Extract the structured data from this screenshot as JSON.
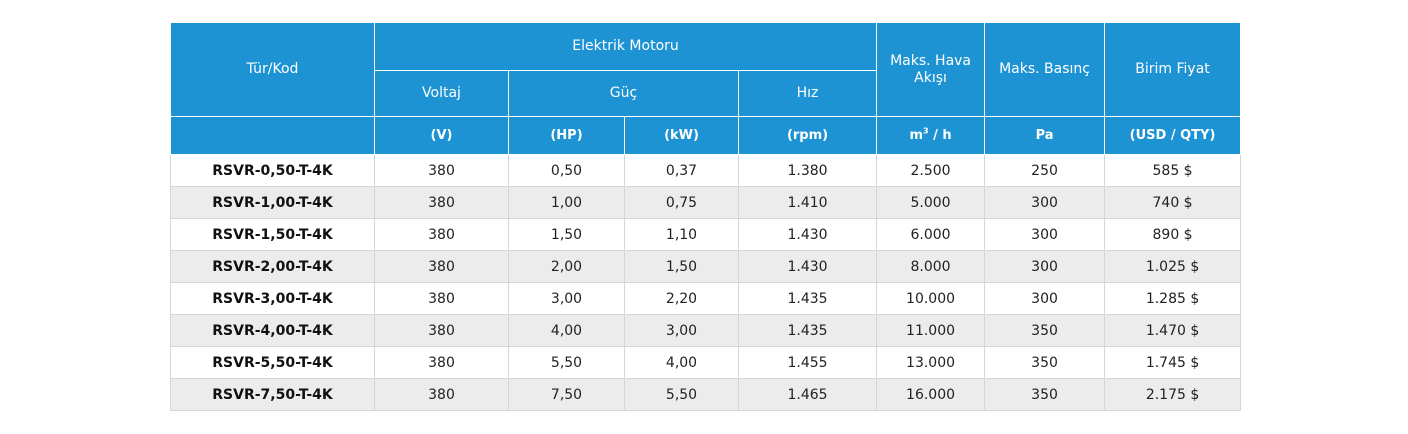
{
  "header": {
    "type_code": "Tür/Kod",
    "electric_motor": "Elektrik Motoru",
    "voltage": "Voltaj",
    "power": "Güç",
    "speed": "Hız",
    "max_airflow": "Maks. Hava Akışı",
    "max_pressure": "Maks. Basınç",
    "unit_price": "Birim Fiyat"
  },
  "units": {
    "voltage": "(V)",
    "power_hp": "(HP)",
    "power_kw": "(kW)",
    "speed": "(rpm)",
    "airflow_base": "m",
    "airflow_sup": "3",
    "airflow_rest": " / h",
    "pressure": "Pa",
    "price": "(USD / QTY)"
  },
  "rows": [
    {
      "code": "RSVR-0,50-T-4K",
      "voltage": "380",
      "hp": "0,50",
      "kw": "0,37",
      "rpm": "1.380",
      "airflow": "2.500",
      "pressure": "250",
      "price": "585 $"
    },
    {
      "code": "RSVR-1,00-T-4K",
      "voltage": "380",
      "hp": "1,00",
      "kw": "0,75",
      "rpm": "1.410",
      "airflow": "5.000",
      "pressure": "300",
      "price": "740 $"
    },
    {
      "code": "RSVR-1,50-T-4K",
      "voltage": "380",
      "hp": "1,50",
      "kw": "1,10",
      "rpm": "1.430",
      "airflow": "6.000",
      "pressure": "300",
      "price": "890 $"
    },
    {
      "code": "RSVR-2,00-T-4K",
      "voltage": "380",
      "hp": "2,00",
      "kw": "1,50",
      "rpm": "1.430",
      "airflow": "8.000",
      "pressure": "300",
      "price": "1.025 $"
    },
    {
      "code": "RSVR-3,00-T-4K",
      "voltage": "380",
      "hp": "3,00",
      "kw": "2,20",
      "rpm": "1.435",
      "airflow": "10.000",
      "pressure": "300",
      "price": "1.285 $"
    },
    {
      "code": "RSVR-4,00-T-4K",
      "voltage": "380",
      "hp": "4,00",
      "kw": "3,00",
      "rpm": "1.435",
      "airflow": "11.000",
      "pressure": "350",
      "price": "1.470 $"
    },
    {
      "code": "RSVR-5,50-T-4K",
      "voltage": "380",
      "hp": "5,50",
      "kw": "4,00",
      "rpm": "1.455",
      "airflow": "13.000",
      "pressure": "350",
      "price": "1.745 $"
    },
    {
      "code": "RSVR-7,50-T-4K",
      "voltage": "380",
      "hp": "7,50",
      "kw": "5,50",
      "rpm": "1.465",
      "airflow": "16.000",
      "pressure": "350",
      "price": "2.175 $"
    }
  ]
}
